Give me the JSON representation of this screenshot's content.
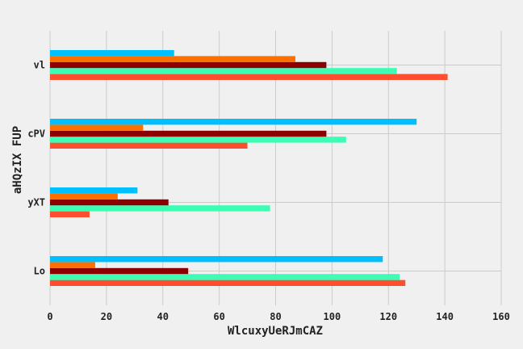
{
  "chart_data": {
    "type": "bar",
    "orientation": "horizontal",
    "categories": [
      "Lo",
      "yXT",
      "cPV",
      "vl"
    ],
    "series": [
      {
        "values": [
          126,
          14,
          70,
          141
        ],
        "color": "#fc4f30"
      },
      {
        "values": [
          124,
          78,
          105,
          123
        ],
        "color": "#3dfcb4"
      },
      {
        "values": [
          49,
          42,
          98,
          98
        ],
        "color": "#8b0000"
      },
      {
        "values": [
          16,
          24,
          33,
          87
        ],
        "color": "#fc6f00"
      },
      {
        "values": [
          118,
          31,
          130,
          44
        ],
        "color": "#00bfff"
      }
    ],
    "xlabel": "WlcuxyUeRJmCAZ",
    "ylabel": "aHQzIX FUP",
    "xlim": [
      0,
      160
    ],
    "xticks": [
      "0",
      "20",
      "40",
      "60",
      "80",
      "100",
      "120",
      "140",
      "160"
    ],
    "grid": true,
    "background": "#f0f0f0",
    "gridcolor": "#cbcbcb"
  }
}
